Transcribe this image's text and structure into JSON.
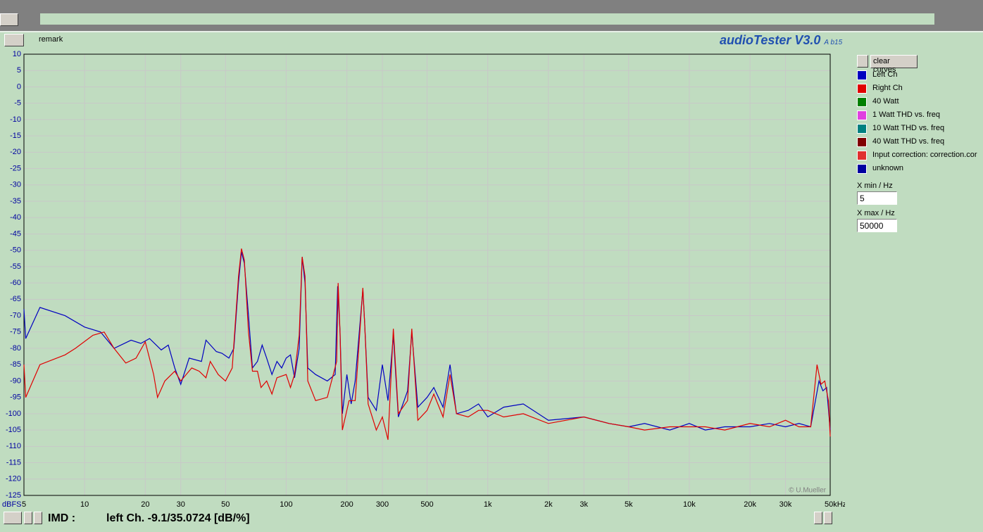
{
  "window": {
    "remark": "remark",
    "app_title": "audioTester V3.0",
    "app_build": "A b15",
    "clear_button": "clear curves",
    "other_curves": [
      {
        "name": "40 Watt",
        "color": "#008000"
      },
      {
        "name": "1 Watt THD vs. freq",
        "color": "#e040e0"
      },
      {
        "name": "10 Watt THD vs. freq",
        "color": "#008080"
      },
      {
        "name": "40 Watt THD vs. freq",
        "color": "#800000"
      },
      {
        "name": "Input correction: correction.cor",
        "color": "#e03030"
      },
      {
        "name": "unknown",
        "color": "#0000a0"
      }
    ],
    "xmin_label": "X min / Hz",
    "xmax_label": "X max / Hz",
    "imd_label": "IMD :",
    "imd_value": "left Ch. -9.1/35.0724 [dB/%]",
    "copyright": "© U.Mueller"
  },
  "chart_data": {
    "type": "line",
    "y_unit": "dBFS",
    "xlog": true,
    "grid": true,
    "xlim": [
      5,
      50000
    ],
    "ylim": [
      -125,
      10
    ],
    "xticks": [
      5,
      10,
      20,
      30,
      50,
      100,
      200,
      300,
      500,
      {
        "value": 1000,
        "label": "1k"
      },
      {
        "value": 2000,
        "label": "2k"
      },
      {
        "value": 3000,
        "label": "3k"
      },
      {
        "value": 5000,
        "label": "5k"
      },
      {
        "value": 10000,
        "label": "10k"
      },
      {
        "value": 20000,
        "label": "20k"
      },
      {
        "value": 30000,
        "label": "30k"
      },
      {
        "value": 50000,
        "label": "50kHz"
      }
    ],
    "yticks": [
      10,
      5,
      0,
      -5,
      -10,
      -15,
      -20,
      -25,
      -30,
      -35,
      -40,
      -45,
      -50,
      -55,
      -60,
      -65,
      -70,
      -75,
      -80,
      -85,
      -90,
      -95,
      -100,
      -105,
      -110,
      -115,
      -120,
      -125
    ],
    "series": [
      {
        "name": "Left Ch",
        "color": "#0000c0",
        "x": [
          5,
          5.1,
          6,
          8,
          10,
          12,
          14,
          17,
          19,
          21,
          24,
          26,
          28,
          30,
          33,
          38,
          40,
          45,
          48,
          52,
          55,
          58,
          60,
          62,
          65,
          68,
          72,
          76,
          80,
          85,
          90,
          95,
          100,
          105,
          110,
          116,
          120,
          124,
          128,
          140,
          160,
          175,
          180,
          185,
          190,
          200,
          210,
          220,
          240,
          245,
          255,
          280,
          300,
          320,
          340,
          360,
          400,
          420,
          450,
          500,
          540,
          600,
          650,
          700,
          800,
          900,
          1000,
          1200,
          1500,
          2000,
          3000,
          4000,
          5000,
          6000,
          8000,
          10000,
          12000,
          15000,
          20000,
          25000,
          30000,
          35000,
          40000,
          44000,
          46000,
          48000,
          50000
        ],
        "values": [
          -68,
          -77,
          -67.5,
          -70,
          -73.5,
          -75,
          -80,
          -77.5,
          -78.5,
          -77,
          -80.5,
          -79,
          -86,
          -91,
          -83,
          -84,
          -77.5,
          -81,
          -81.5,
          -83,
          -80,
          -60,
          -50.5,
          -54,
          -70,
          -86,
          -84,
          -79,
          -83,
          -88,
          -84,
          -86,
          -83,
          -82,
          -89,
          -80,
          -52,
          -60,
          -86,
          -88,
          -90,
          -88,
          -61,
          -75,
          -100,
          -88,
          -97,
          -90,
          -62,
          -72,
          -95,
          -99,
          -85,
          -96,
          -76,
          -101,
          -93,
          -75,
          -98,
          -95,
          -92,
          -98,
          -85,
          -100,
          -99,
          -97,
          -101,
          -98,
          -97,
          -102,
          -101,
          -103,
          -104,
          -103,
          -105,
          -103,
          -105,
          -104,
          -104,
          -103,
          -104,
          -103,
          -104,
          -90,
          -93,
          -92,
          -105
        ]
      },
      {
        "name": "Right Ch",
        "color": "#e00000",
        "x": [
          5,
          5.1,
          6,
          8,
          9,
          11,
          12.5,
          14,
          16,
          18,
          20,
          22,
          23,
          25,
          28,
          30,
          34,
          37,
          40,
          42,
          46,
          50,
          54,
          58,
          60,
          62,
          65,
          68,
          72,
          75,
          80,
          85,
          90,
          100,
          105,
          110,
          116,
          120,
          124,
          128,
          140,
          160,
          178,
          181,
          185,
          190,
          205,
          220,
          240,
          245,
          255,
          280,
          300,
          320,
          340,
          360,
          400,
          420,
          450,
          500,
          540,
          600,
          650,
          700,
          800,
          900,
          1000,
          1200,
          1500,
          2000,
          3000,
          4000,
          5000,
          6000,
          8000,
          10000,
          12000,
          15000,
          20000,
          25000,
          30000,
          35000,
          40000,
          43000,
          45000,
          47000,
          49000,
          50000
        ],
        "values": [
          -85,
          -95,
          -85,
          -82,
          -80,
          -76,
          -75,
          -80,
          -84.5,
          -83,
          -78,
          -88,
          -95,
          -90,
          -87,
          -90,
          -86,
          -87,
          -89,
          -84,
          -88,
          -90,
          -86,
          -58,
          -49.5,
          -53,
          -75,
          -87,
          -87,
          -92,
          -90,
          -94,
          -89,
          -88,
          -92,
          -88,
          -76,
          -52,
          -58,
          -90,
          -96,
          -95,
          -84,
          -60,
          -75,
          -105,
          -96,
          -96,
          -61.5,
          -72,
          -97,
          -105,
          -101,
          -108,
          -74,
          -100,
          -96,
          -74,
          -102,
          -99,
          -94,
          -101,
          -88,
          -100,
          -101,
          -99,
          -99,
          -101,
          -100,
          -103,
          -101,
          -103,
          -104,
          -105,
          -104,
          -104,
          -104,
          -105,
          -103,
          -104,
          -102,
          -104,
          -104,
          -85,
          -91,
          -90,
          -96,
          -107
        ]
      }
    ]
  }
}
